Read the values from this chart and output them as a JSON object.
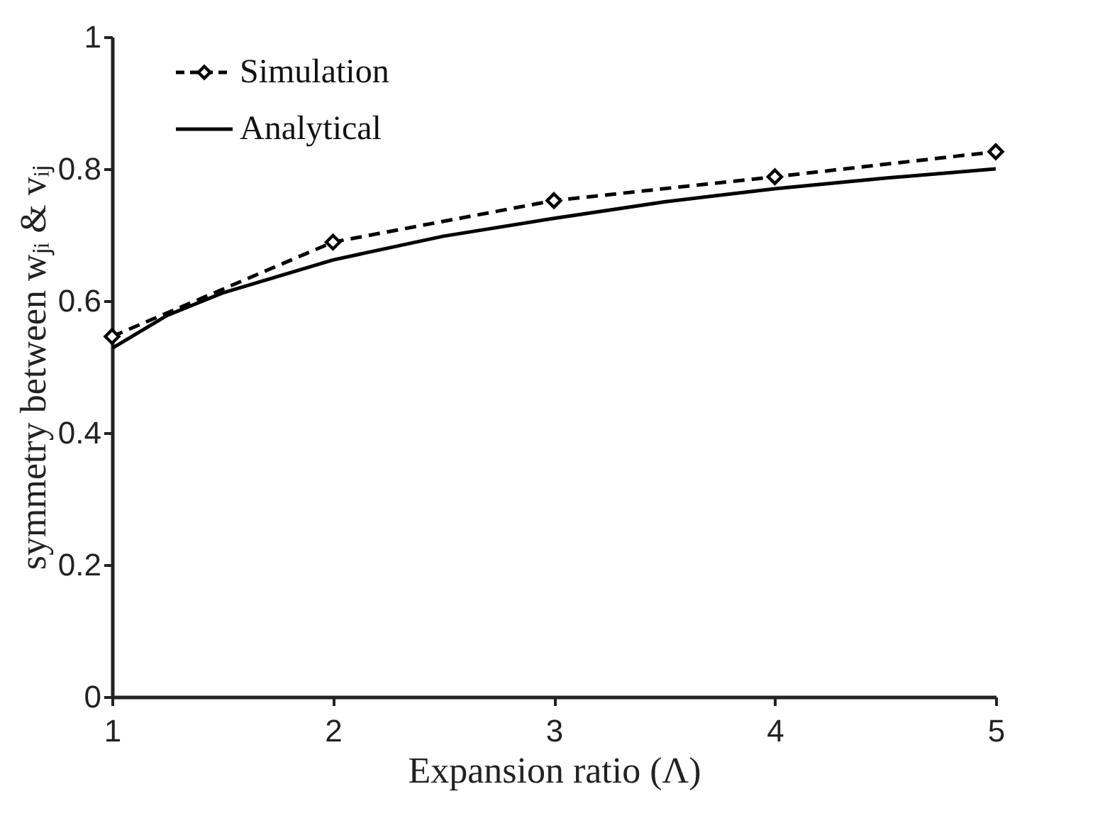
{
  "chart_data": {
    "type": "line",
    "xlabel": "Expansion ratio (Λ)",
    "ylabel": "symmetry between wⱼᵢ & vᵢⱼ",
    "xlim": [
      1,
      5
    ],
    "xticks": [
      1,
      2,
      3,
      4,
      5
    ],
    "ylim": [
      0,
      1
    ],
    "yticks": [
      0,
      0.2,
      0.4,
      0.6,
      0.8,
      1
    ],
    "grid": false,
    "legend": "top left",
    "series": [
      {
        "name": "Simulation",
        "color": "#000000",
        "line_style": "dashed",
        "marker": "diamond",
        "x": [
          1,
          2,
          3,
          4,
          5
        ],
        "values": [
          0.546,
          0.689,
          0.752,
          0.788,
          0.826
        ]
      },
      {
        "name": "Analytical",
        "color": "#000000",
        "line_style": "solid",
        "marker": "none",
        "x": [
          1,
          1.25,
          1.5,
          2,
          2.5,
          3,
          3.5,
          4,
          4.5,
          5
        ],
        "values": [
          0.528,
          0.578,
          0.612,
          0.662,
          0.698,
          0.725,
          0.75,
          0.77,
          0.786,
          0.8
        ]
      }
    ]
  }
}
